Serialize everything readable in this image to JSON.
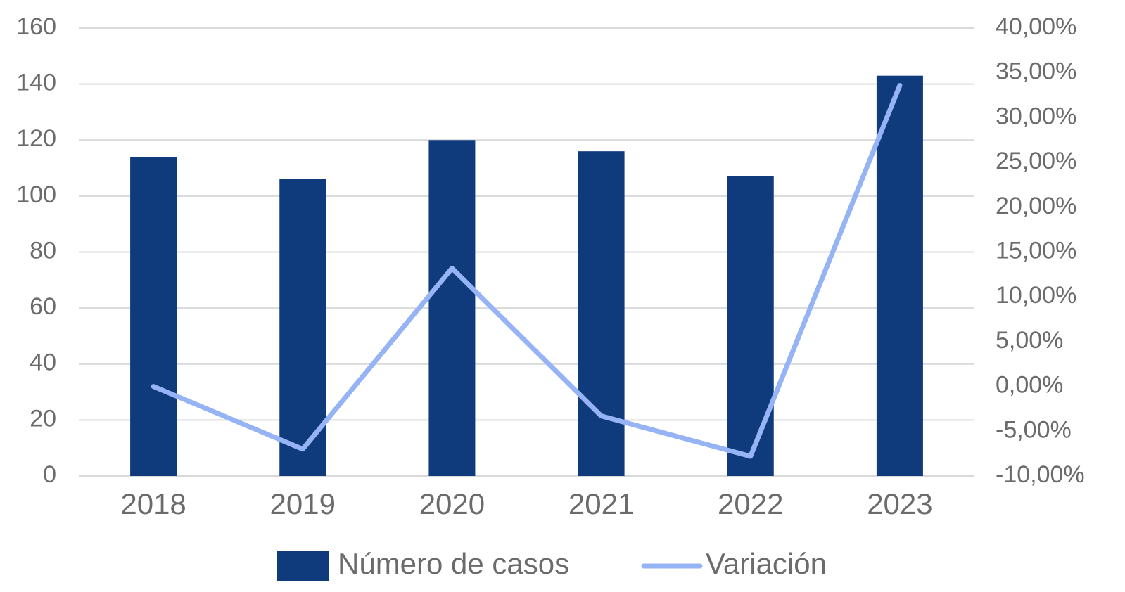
{
  "chart_data": {
    "type": "bar",
    "categories": [
      "2018",
      "2019",
      "2020",
      "2021",
      "2022",
      "2023"
    ],
    "series": [
      {
        "name": "Número de casos",
        "type": "bar",
        "color": "#0f3b7d",
        "values": [
          114,
          106,
          120,
          116,
          107,
          143
        ]
      },
      {
        "name": "Variación",
        "type": "line",
        "axis": "y2",
        "color": "#95b3f5",
        "values": [
          0,
          -7.0,
          13.2,
          -3.3,
          -7.8,
          33.6
        ]
      }
    ],
    "ylim": [
      0,
      160
    ],
    "yticks": [
      0,
      20,
      40,
      60,
      80,
      100,
      120,
      140,
      160
    ],
    "y2lim": [
      -10,
      40
    ],
    "y2ticks": [
      {
        "value": -10,
        "label": "-10,00%"
      },
      {
        "value": -5,
        "label": "-5,00%"
      },
      {
        "value": 0,
        "label": "0,00%"
      },
      {
        "value": 5,
        "label": "5,00%"
      },
      {
        "value": 10,
        "label": "10,00%"
      },
      {
        "value": 15,
        "label": "15,00%"
      },
      {
        "value": 20,
        "label": "20,00%"
      },
      {
        "value": 25,
        "label": "25,00%"
      },
      {
        "value": 30,
        "label": "30,00%"
      },
      {
        "value": 35,
        "label": "35,00%"
      },
      {
        "value": 40,
        "label": "40,00%"
      }
    ],
    "grid": true,
    "legend": "bottom"
  }
}
